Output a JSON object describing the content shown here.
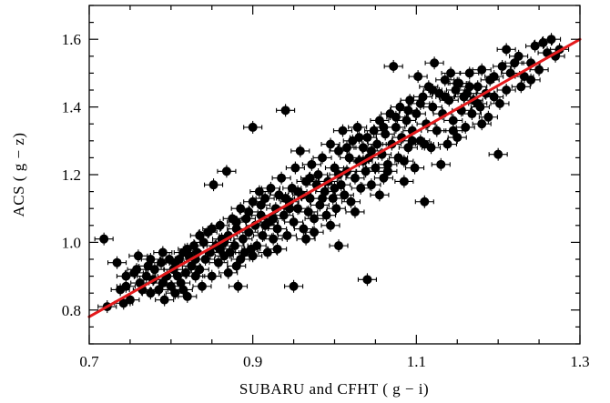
{
  "chart_data": {
    "type": "scatter",
    "title": "",
    "xlabel": "SUBARU and CFHT ( g − i)",
    "ylabel": "ACS ( g − z)",
    "xlim": [
      0.7,
      1.3
    ],
    "ylim": [
      0.7,
      1.7
    ],
    "xticks": [
      0.7,
      0.9,
      1.1,
      1.3
    ],
    "xtick_labels": [
      "0.7",
      "0.9",
      "1.1",
      "1.3"
    ],
    "yticks": [
      0.8,
      1.0,
      1.2,
      1.4,
      1.6
    ],
    "ytick_labels": [
      "0.8",
      "1.0",
      "1.2",
      "1.4",
      "1.6"
    ],
    "grid": false,
    "marker_color": "#000000",
    "fit_line": {
      "color": "#e41a1c",
      "x": [
        0.7,
        1.3
      ],
      "y": [
        0.78,
        1.6
      ]
    },
    "series": [
      {
        "points": [
          [
            0.718,
            1.01
          ],
          [
            0.722,
            0.81
          ],
          [
            0.734,
            0.94
          ],
          [
            0.738,
            0.86
          ],
          [
            0.742,
            0.82
          ],
          [
            0.745,
            0.87
          ],
          [
            0.75,
            0.83
          ],
          [
            0.755,
            0.91
          ],
          [
            0.758,
            0.92
          ],
          [
            0.762,
            0.88
          ],
          [
            0.765,
            0.86
          ],
          [
            0.77,
            0.9
          ],
          [
            0.772,
            0.93
          ],
          [
            0.775,
            0.85
          ],
          [
            0.778,
            0.89
          ],
          [
            0.78,
            0.92
          ],
          [
            0.785,
            0.86
          ],
          [
            0.788,
            0.94
          ],
          [
            0.79,
            0.88
          ],
          [
            0.792,
            0.83
          ],
          [
            0.795,
            0.9
          ],
          [
            0.798,
            0.95
          ],
          [
            0.8,
            0.87
          ],
          [
            0.803,
            0.92
          ],
          [
            0.805,
            0.85
          ],
          [
            0.808,
            0.9
          ],
          [
            0.81,
            0.95
          ],
          [
            0.812,
            0.88
          ],
          [
            0.815,
            0.97
          ],
          [
            0.818,
            0.91
          ],
          [
            0.82,
            0.84
          ],
          [
            0.822,
            0.96
          ],
          [
            0.825,
            0.93
          ],
          [
            0.828,
            0.99
          ],
          [
            0.83,
            0.9
          ],
          [
            0.832,
            0.97
          ],
          [
            0.835,
            0.92
          ],
          [
            0.838,
            0.87
          ],
          [
            0.84,
            1.0
          ],
          [
            0.842,
            0.95
          ],
          [
            0.845,
            1.03
          ],
          [
            0.848,
            0.97
          ],
          [
            0.85,
            0.9
          ],
          [
            0.852,
            1.17
          ],
          [
            0.855,
            0.99
          ],
          [
            0.858,
            0.94
          ],
          [
            0.86,
            1.05
          ],
          [
            0.862,
            1.01
          ],
          [
            0.865,
            0.96
          ],
          [
            0.868,
            1.21
          ],
          [
            0.87,
            1.02
          ],
          [
            0.872,
            0.97
          ],
          [
            0.875,
            1.07
          ],
          [
            0.878,
            0.99
          ],
          [
            0.88,
            0.93
          ],
          [
            0.88,
            1.04
          ],
          [
            0.882,
            0.87
          ],
          [
            0.885,
            1.1
          ],
          [
            0.888,
            1.01
          ],
          [
            0.89,
            0.97
          ],
          [
            0.892,
            1.07
          ],
          [
            0.895,
            1.03
          ],
          [
            0.898,
            0.98
          ],
          [
            0.9,
            1.34
          ],
          [
            0.9,
            1.12
          ],
          [
            0.903,
            1.05
          ],
          [
            0.905,
            0.99
          ],
          [
            0.908,
            1.15
          ],
          [
            0.91,
            1.08
          ],
          [
            0.912,
            1.02
          ],
          [
            0.915,
            1.13
          ],
          [
            0.918,
            0.97
          ],
          [
            0.92,
            1.06
          ],
          [
            0.922,
            1.16
          ],
          [
            0.925,
            1.01
          ],
          [
            0.928,
            1.1
          ],
          [
            0.93,
            1.04
          ],
          [
            0.932,
            1.14
          ],
          [
            0.935,
            1.19
          ],
          [
            0.938,
            1.08
          ],
          [
            0.94,
            1.39
          ],
          [
            0.942,
            1.02
          ],
          [
            0.945,
            1.12
          ],
          [
            0.948,
            1.16
          ],
          [
            0.95,
            0.87
          ],
          [
            0.95,
            1.06
          ],
          [
            0.952,
            1.22
          ],
          [
            0.955,
            1.1
          ],
          [
            0.958,
            1.27
          ],
          [
            0.96,
            1.14
          ],
          [
            0.962,
            1.04
          ],
          [
            0.965,
            1.18
          ],
          [
            0.968,
            1.09
          ],
          [
            0.97,
            1.13
          ],
          [
            0.972,
            1.23
          ],
          [
            0.975,
            1.07
          ],
          [
            0.978,
            1.17
          ],
          [
            0.98,
            1.2
          ],
          [
            0.982,
            1.11
          ],
          [
            0.985,
            1.25
          ],
          [
            0.988,
            1.15
          ],
          [
            0.99,
            1.08
          ],
          [
            0.992,
            1.18
          ],
          [
            0.995,
            1.29
          ],
          [
            0.998,
            1.13
          ],
          [
            1.0,
            1.22
          ],
          [
            1.002,
            1.1
          ],
          [
            1.005,
            0.99
          ],
          [
            1.005,
            1.27
          ],
          [
            1.008,
            1.17
          ],
          [
            1.01,
            1.33
          ],
          [
            1.012,
            1.14
          ],
          [
            1.015,
            1.21
          ],
          [
            1.018,
            1.25
          ],
          [
            1.02,
            1.12
          ],
          [
            1.022,
            1.3
          ],
          [
            1.025,
            1.19
          ],
          [
            1.028,
            1.34
          ],
          [
            1.03,
            1.24
          ],
          [
            1.032,
            1.16
          ],
          [
            1.035,
            1.28
          ],
          [
            1.038,
            1.21
          ],
          [
            1.04,
            0.89
          ],
          [
            1.04,
            1.31
          ],
          [
            1.042,
            1.25
          ],
          [
            1.045,
            1.17
          ],
          [
            1.048,
            1.33
          ],
          [
            1.05,
            1.22
          ],
          [
            1.052,
            1.29
          ],
          [
            1.055,
            1.36
          ],
          [
            1.058,
            1.26
          ],
          [
            1.06,
            1.19
          ],
          [
            1.062,
            1.32
          ],
          [
            1.065,
            1.23
          ],
          [
            1.068,
            1.38
          ],
          [
            1.07,
            1.29
          ],
          [
            1.072,
            1.52
          ],
          [
            1.075,
            1.34
          ],
          [
            1.078,
            1.25
          ],
          [
            1.08,
            1.4
          ],
          [
            1.082,
            1.31
          ],
          [
            1.085,
            1.18
          ],
          [
            1.088,
            1.36
          ],
          [
            1.09,
            1.28
          ],
          [
            1.092,
            1.42
          ],
          [
            1.095,
            1.33
          ],
          [
            1.098,
            1.22
          ],
          [
            1.1,
            1.38
          ],
          [
            1.102,
            1.49
          ],
          [
            1.105,
            1.3
          ],
          [
            1.108,
            1.43
          ],
          [
            1.11,
            1.12
          ],
          [
            1.112,
            1.35
          ],
          [
            1.115,
            1.46
          ],
          [
            1.118,
            1.28
          ],
          [
            1.12,
            1.4
          ],
          [
            1.122,
            1.53
          ],
          [
            1.125,
            1.33
          ],
          [
            1.128,
            1.44
          ],
          [
            1.13,
            1.23
          ],
          [
            1.132,
            1.38
          ],
          [
            1.135,
            1.48
          ],
          [
            1.138,
            1.29
          ],
          [
            1.14,
            1.42
          ],
          [
            1.142,
            1.5
          ],
          [
            1.145,
            1.36
          ],
          [
            1.148,
            1.45
          ],
          [
            1.15,
            1.31
          ],
          [
            1.152,
            1.47
          ],
          [
            1.155,
            1.39
          ],
          [
            1.158,
            1.43
          ],
          [
            1.16,
            1.34
          ],
          [
            1.162,
            1.44
          ],
          [
            1.165,
            1.5
          ],
          [
            1.168,
            1.38
          ],
          [
            1.17,
            1.42
          ],
          [
            1.175,
            1.46
          ],
          [
            1.178,
            1.4
          ],
          [
            1.18,
            1.35
          ],
          [
            1.185,
            1.44
          ],
          [
            1.188,
            1.37
          ],
          [
            1.19,
            1.48
          ],
          [
            1.195,
            1.43
          ],
          [
            1.2,
            1.26
          ],
          [
            1.202,
            1.41
          ],
          [
            1.205,
            1.52
          ],
          [
            1.21,
            1.57
          ],
          [
            1.215,
            1.5
          ],
          [
            1.22,
            1.53
          ],
          [
            1.225,
            1.55
          ],
          [
            1.228,
            1.46
          ],
          [
            1.232,
            1.49
          ],
          [
            1.24,
            1.53
          ],
          [
            1.245,
            1.58
          ],
          [
            1.25,
            1.51
          ],
          [
            1.255,
            1.59
          ],
          [
            1.26,
            1.56
          ],
          [
            1.265,
            1.6
          ],
          [
            1.27,
            1.55
          ],
          [
            1.275,
            1.57
          ],
          [
            0.76,
            0.96
          ],
          [
            0.775,
            0.95
          ],
          [
            0.79,
            0.97
          ],
          [
            0.805,
            0.94
          ],
          [
            0.82,
            0.98
          ],
          [
            0.835,
            1.02
          ],
          [
            0.85,
            1.04
          ],
          [
            0.865,
            1.0
          ],
          [
            0.88,
            1.06
          ],
          [
            0.895,
            1.09
          ],
          [
            0.91,
            1.11
          ],
          [
            0.925,
            1.07
          ],
          [
            0.94,
            1.13
          ],
          [
            0.955,
            1.15
          ],
          [
            0.97,
            1.19
          ],
          [
            0.985,
            1.13
          ],
          [
            1.0,
            1.16
          ],
          [
            1.015,
            1.28
          ],
          [
            1.03,
            1.31
          ],
          [
            1.045,
            1.27
          ],
          [
            1.06,
            1.34
          ],
          [
            1.075,
            1.37
          ],
          [
            1.09,
            1.39
          ],
          [
            1.105,
            1.41
          ],
          [
            1.12,
            1.45
          ],
          [
            1.135,
            1.43
          ],
          [
            1.15,
            1.47
          ],
          [
            1.165,
            1.46
          ],
          [
            1.18,
            1.51
          ],
          [
            1.195,
            1.49
          ],
          [
            0.745,
            0.9
          ],
          [
            0.815,
            0.86
          ],
          [
            0.87,
            0.91
          ],
          [
            0.9,
            0.96
          ],
          [
            0.93,
            0.98
          ],
          [
            0.965,
            1.01
          ],
          [
            0.995,
            1.05
          ],
          [
            1.025,
            1.09
          ],
          [
            1.055,
            1.14
          ],
          [
            1.085,
            1.24
          ],
          [
            1.11,
            1.29
          ],
          [
            1.145,
            1.33
          ],
          [
            1.175,
            1.41
          ],
          [
            1.21,
            1.45
          ],
          [
            1.24,
            1.48
          ],
          [
            0.83,
            0.95
          ],
          [
            0.86,
            0.98
          ],
          [
            0.885,
            0.95
          ],
          [
            0.915,
            1.05
          ],
          [
            0.945,
            1.1
          ],
          [
            0.975,
            1.03
          ],
          [
            1.005,
            1.2
          ],
          [
            1.035,
            1.24
          ],
          [
            1.065,
            1.21
          ],
          [
            1.095,
            1.3
          ]
        ]
      }
    ]
  }
}
